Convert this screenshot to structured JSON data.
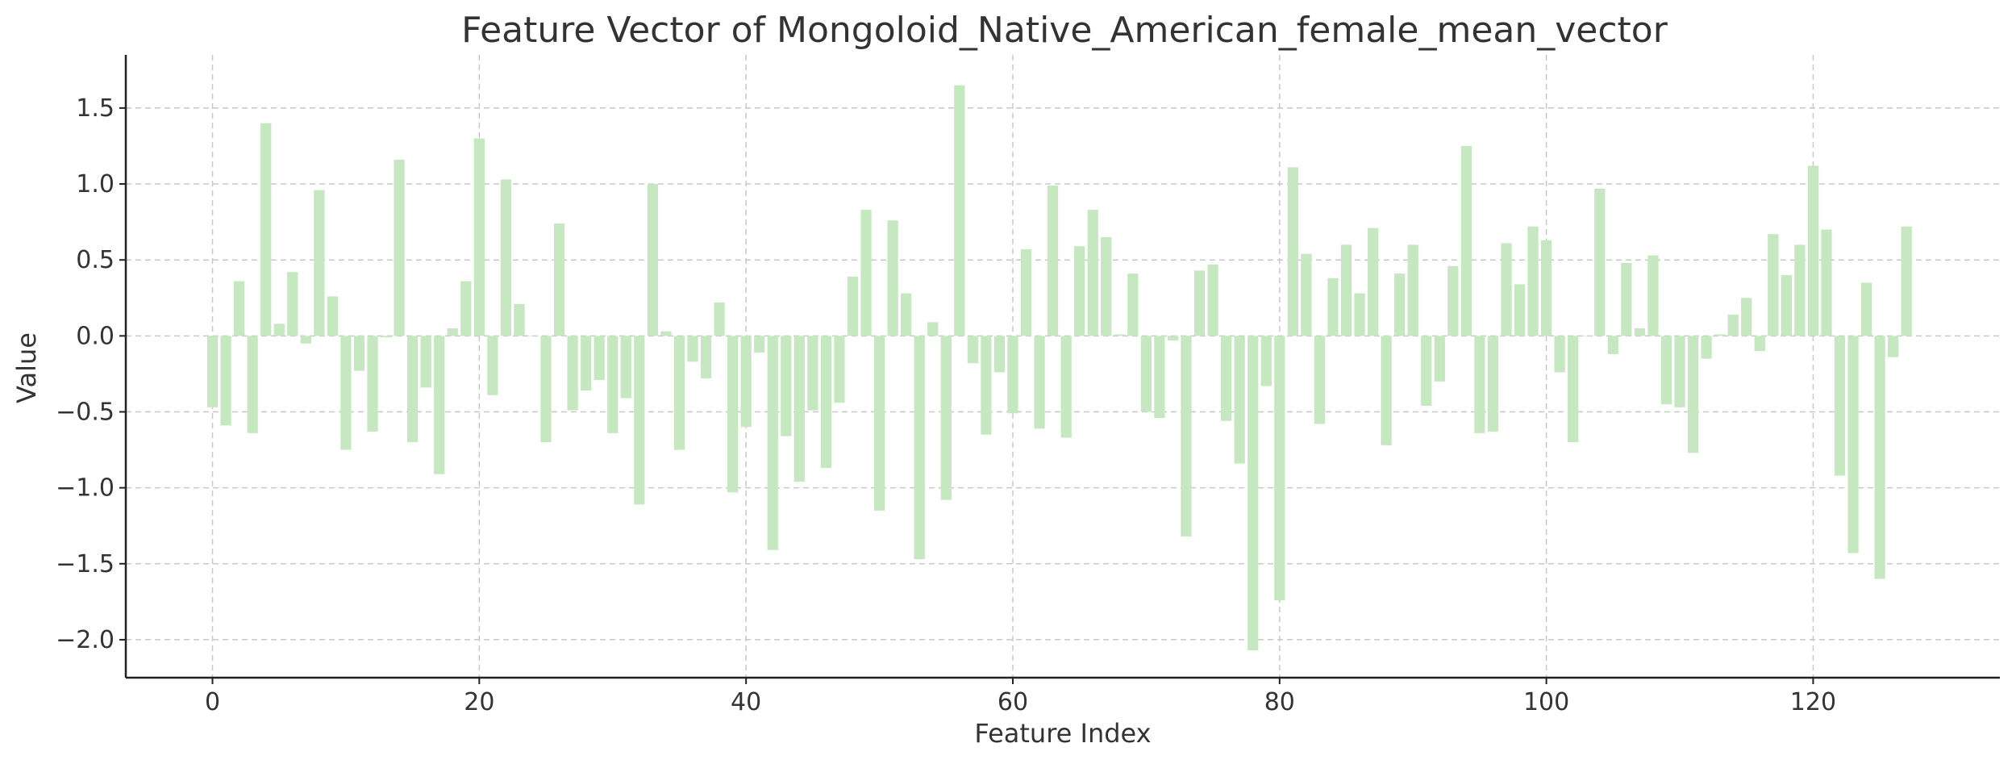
{
  "chart_data": {
    "type": "bar",
    "title": "Feature Vector of Mongoloid_Native_American_female_mean_vector",
    "xlabel": "Feature Index",
    "ylabel": "Value",
    "xlim": [
      -6.5,
      134
    ],
    "ylim": [
      -2.25,
      1.85
    ],
    "xticks": [
      0,
      20,
      40,
      60,
      80,
      100,
      120
    ],
    "yticks": [
      -2.0,
      -1.5,
      -1.0,
      -0.5,
      0.0,
      0.5,
      1.0,
      1.5
    ],
    "ytick_labels": [
      "−2.0",
      "−1.5",
      "−1.0",
      "−0.5",
      "0.0",
      "0.5",
      "1.0",
      "1.5"
    ],
    "grid": true,
    "bar_color": "#c6e8c0",
    "x": [
      0,
      1,
      2,
      3,
      4,
      5,
      6,
      7,
      8,
      9,
      10,
      11,
      12,
      13,
      14,
      15,
      16,
      17,
      18,
      19,
      20,
      21,
      22,
      23,
      24,
      25,
      26,
      27,
      28,
      29,
      30,
      31,
      32,
      33,
      34,
      35,
      36,
      37,
      38,
      39,
      40,
      41,
      42,
      43,
      44,
      45,
      46,
      47,
      48,
      49,
      50,
      51,
      52,
      53,
      54,
      55,
      56,
      57,
      58,
      59,
      60,
      61,
      62,
      63,
      64,
      65,
      66,
      67,
      68,
      69,
      70,
      71,
      72,
      73,
      74,
      75,
      76,
      77,
      78,
      79,
      80,
      81,
      82,
      83,
      84,
      85,
      86,
      87,
      88,
      89,
      90,
      91,
      92,
      93,
      94,
      95,
      96,
      97,
      98,
      99,
      100,
      101,
      102,
      103,
      104,
      105,
      106,
      107,
      108,
      109,
      110,
      111,
      112,
      113,
      114,
      115,
      116,
      117,
      118,
      119,
      120,
      121,
      122,
      123,
      124,
      125,
      126,
      127
    ],
    "values": [
      -0.47,
      -0.59,
      0.36,
      -0.64,
      1.4,
      0.08,
      0.42,
      -0.05,
      0.96,
      0.26,
      -0.75,
      -0.23,
      -0.63,
      -0.01,
      1.16,
      -0.7,
      -0.34,
      -0.91,
      0.05,
      0.36,
      1.3,
      -0.39,
      1.03,
      0.21,
      0.0,
      -0.7,
      0.74,
      -0.49,
      -0.36,
      -0.29,
      -0.64,
      -0.41,
      -1.11,
      1.0,
      0.03,
      -0.75,
      -0.17,
      -0.28,
      0.22,
      -1.03,
      -0.6,
      -0.11,
      -1.41,
      -0.66,
      -0.96,
      -0.49,
      -0.87,
      -0.44,
      0.39,
      0.83,
      -1.15,
      0.76,
      0.28,
      -1.47,
      0.09,
      -1.08,
      1.65,
      -0.18,
      -0.65,
      -0.24,
      -0.51,
      0.57,
      -0.61,
      0.99,
      -0.67,
      0.59,
      0.83,
      0.65,
      0.01,
      0.41,
      -0.5,
      -0.54,
      -0.03,
      -1.32,
      0.43,
      0.47,
      -0.56,
      -0.84,
      -2.07,
      -0.33,
      -1.74,
      1.11,
      0.54,
      -0.58,
      0.38,
      0.6,
      0.28,
      0.71,
      -0.72,
      0.41,
      0.6,
      -0.46,
      -0.3,
      0.46,
      1.25,
      -0.64,
      -0.63,
      0.61,
      0.34,
      0.72,
      0.63,
      -0.24,
      -0.7,
      0.0,
      0.97,
      -0.12,
      0.48,
      0.05,
      0.53,
      -0.45,
      -0.47,
      -0.77,
      -0.15,
      0.01,
      0.14,
      0.25,
      -0.1,
      0.67,
      0.4,
      0.6,
      1.12,
      0.7,
      -0.92,
      -1.43,
      0.35,
      -1.6,
      -0.14,
      0.72
    ]
  }
}
